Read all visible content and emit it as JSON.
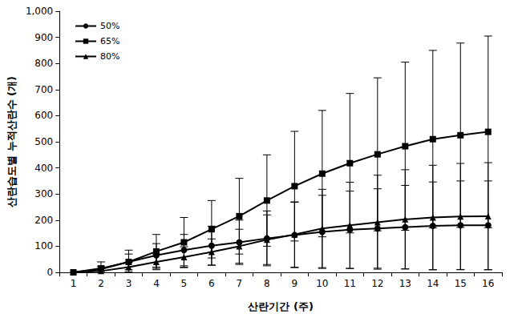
{
  "chart_data": {
    "type": "line",
    "x_label": "산란기간 (주)",
    "y_label": "산란습도별 누적산란수 (개)",
    "categories": [
      1,
      2,
      3,
      4,
      5,
      6,
      7,
      8,
      9,
      10,
      11,
      12,
      13,
      14,
      15,
      16
    ],
    "series": [
      {
        "name": "50%",
        "color": "#000000",
        "marker": "circle",
        "values": [
          0,
          12,
          40,
          65,
          85,
          102,
          115,
          130,
          143,
          155,
          163,
          168,
          173,
          178,
          180,
          180
        ],
        "errors": [
          0,
          12,
          30,
          45,
          60,
          75,
          85,
          105,
          125,
          140,
          148,
          152,
          160,
          168,
          170,
          170
        ]
      },
      {
        "name": "65%",
        "color": "#000000",
        "marker": "square",
        "values": [
          0,
          15,
          40,
          80,
          115,
          165,
          215,
          275,
          330,
          378,
          418,
          452,
          483,
          510,
          525,
          538
        ],
        "errors": [
          0,
          25,
          45,
          65,
          95,
          110,
          145,
          175,
          210,
          242,
          267,
          293,
          322,
          340,
          353,
          367
        ]
      },
      {
        "name": "80%",
        "color": "#000000",
        "marker": "triangle",
        "values": [
          0,
          5,
          20,
          40,
          58,
          78,
          100,
          125,
          145,
          168,
          180,
          192,
          203,
          210,
          214,
          215
        ],
        "errors": [
          0,
          10,
          18,
          30,
          40,
          50,
          65,
          95,
          125,
          150,
          165,
          180,
          190,
          200,
          203,
          205
        ]
      }
    ],
    "ylim": [
      0,
      1000
    ],
    "yticks": [
      0,
      100,
      200,
      300,
      400,
      500,
      600,
      700,
      800,
      900,
      1000
    ],
    "grid": false,
    "legend": "upper left"
  }
}
